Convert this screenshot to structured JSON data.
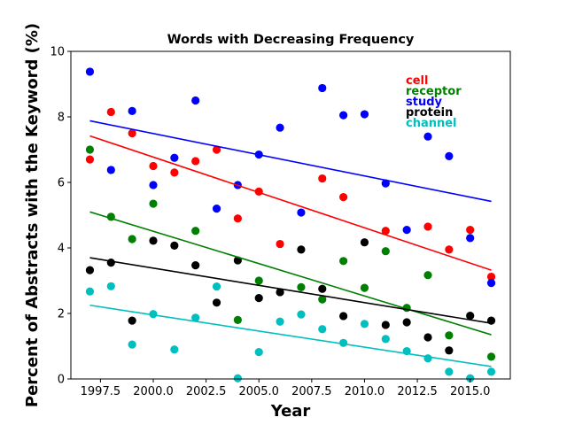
{
  "chart_data": {
    "type": "scatter",
    "title": "Words with Decreasing Frequency",
    "xlabel": "Year",
    "ylabel": "Percent of Abstracts with the Keyword (%)",
    "xlim": [
      1996.1,
      2016.9
    ],
    "ylim": [
      0,
      10
    ],
    "xticks": [
      1997.5,
      2000.0,
      2002.5,
      2005.0,
      2007.5,
      2010.0,
      2012.5,
      2015.0
    ],
    "xtick_labels": [
      "1997.5",
      "2000.0",
      "2002.5",
      "2005.0",
      "2007.5",
      "2010.0",
      "2012.5",
      "2015.0"
    ],
    "yticks": [
      0,
      2,
      4,
      6,
      8,
      10
    ],
    "ytick_labels": [
      "0",
      "2",
      "4",
      "6",
      "8",
      "10"
    ],
    "grid": false,
    "legend_placement": "top-right",
    "x": [
      1997,
      1998,
      1999,
      2000,
      2001,
      2002,
      2003,
      2004,
      2005,
      2006,
      2007,
      2008,
      2009,
      2010,
      2011,
      2012,
      2013,
      2014,
      2015,
      2016
    ],
    "series": [
      {
        "name": "cell",
        "color": "#ff0000",
        "values": [
          6.7,
          8.15,
          7.5,
          6.5,
          6.3,
          6.65,
          7.0,
          4.9,
          5.72,
          4.12,
          null,
          6.12,
          5.55,
          null,
          4.52,
          null,
          4.65,
          3.95,
          4.55,
          3.12
        ],
        "trend": [
          7.42,
          3.32
        ]
      },
      {
        "name": "receptor",
        "color": "#008000",
        "values": [
          7.0,
          4.95,
          4.27,
          5.35,
          null,
          4.52,
          null,
          1.8,
          3.0,
          null,
          2.8,
          2.43,
          3.6,
          2.78,
          3.9,
          2.17,
          3.17,
          1.33,
          null,
          0.68
        ],
        "trend": [
          5.1,
          1.35
        ]
      },
      {
        "name": "study",
        "color": "#0000ff",
        "values": [
          9.38,
          6.38,
          8.18,
          5.92,
          6.75,
          8.5,
          5.2,
          5.92,
          6.85,
          7.67,
          5.08,
          8.88,
          8.05,
          8.08,
          5.97,
          4.55,
          7.4,
          6.8,
          4.3,
          2.93
        ],
        "trend": [
          7.88,
          5.42
        ]
      },
      {
        "name": "protein",
        "color": "#000000",
        "values": [
          3.32,
          3.55,
          1.78,
          4.22,
          4.07,
          3.47,
          2.33,
          3.62,
          2.47,
          2.65,
          3.95,
          2.75,
          1.92,
          4.17,
          1.65,
          1.73,
          1.27,
          0.87,
          1.93,
          1.78
        ],
        "trend": [
          3.7,
          1.7
        ]
      },
      {
        "name": "channel",
        "color": "#00bfbf",
        "values": [
          2.67,
          2.83,
          1.05,
          1.98,
          0.9,
          1.87,
          2.82,
          0.02,
          0.82,
          1.75,
          1.97,
          1.52,
          1.1,
          1.68,
          1.22,
          0.85,
          0.63,
          0.22,
          0.02,
          0.22
        ],
        "trend": [
          2.25,
          0.38
        ]
      }
    ]
  }
}
